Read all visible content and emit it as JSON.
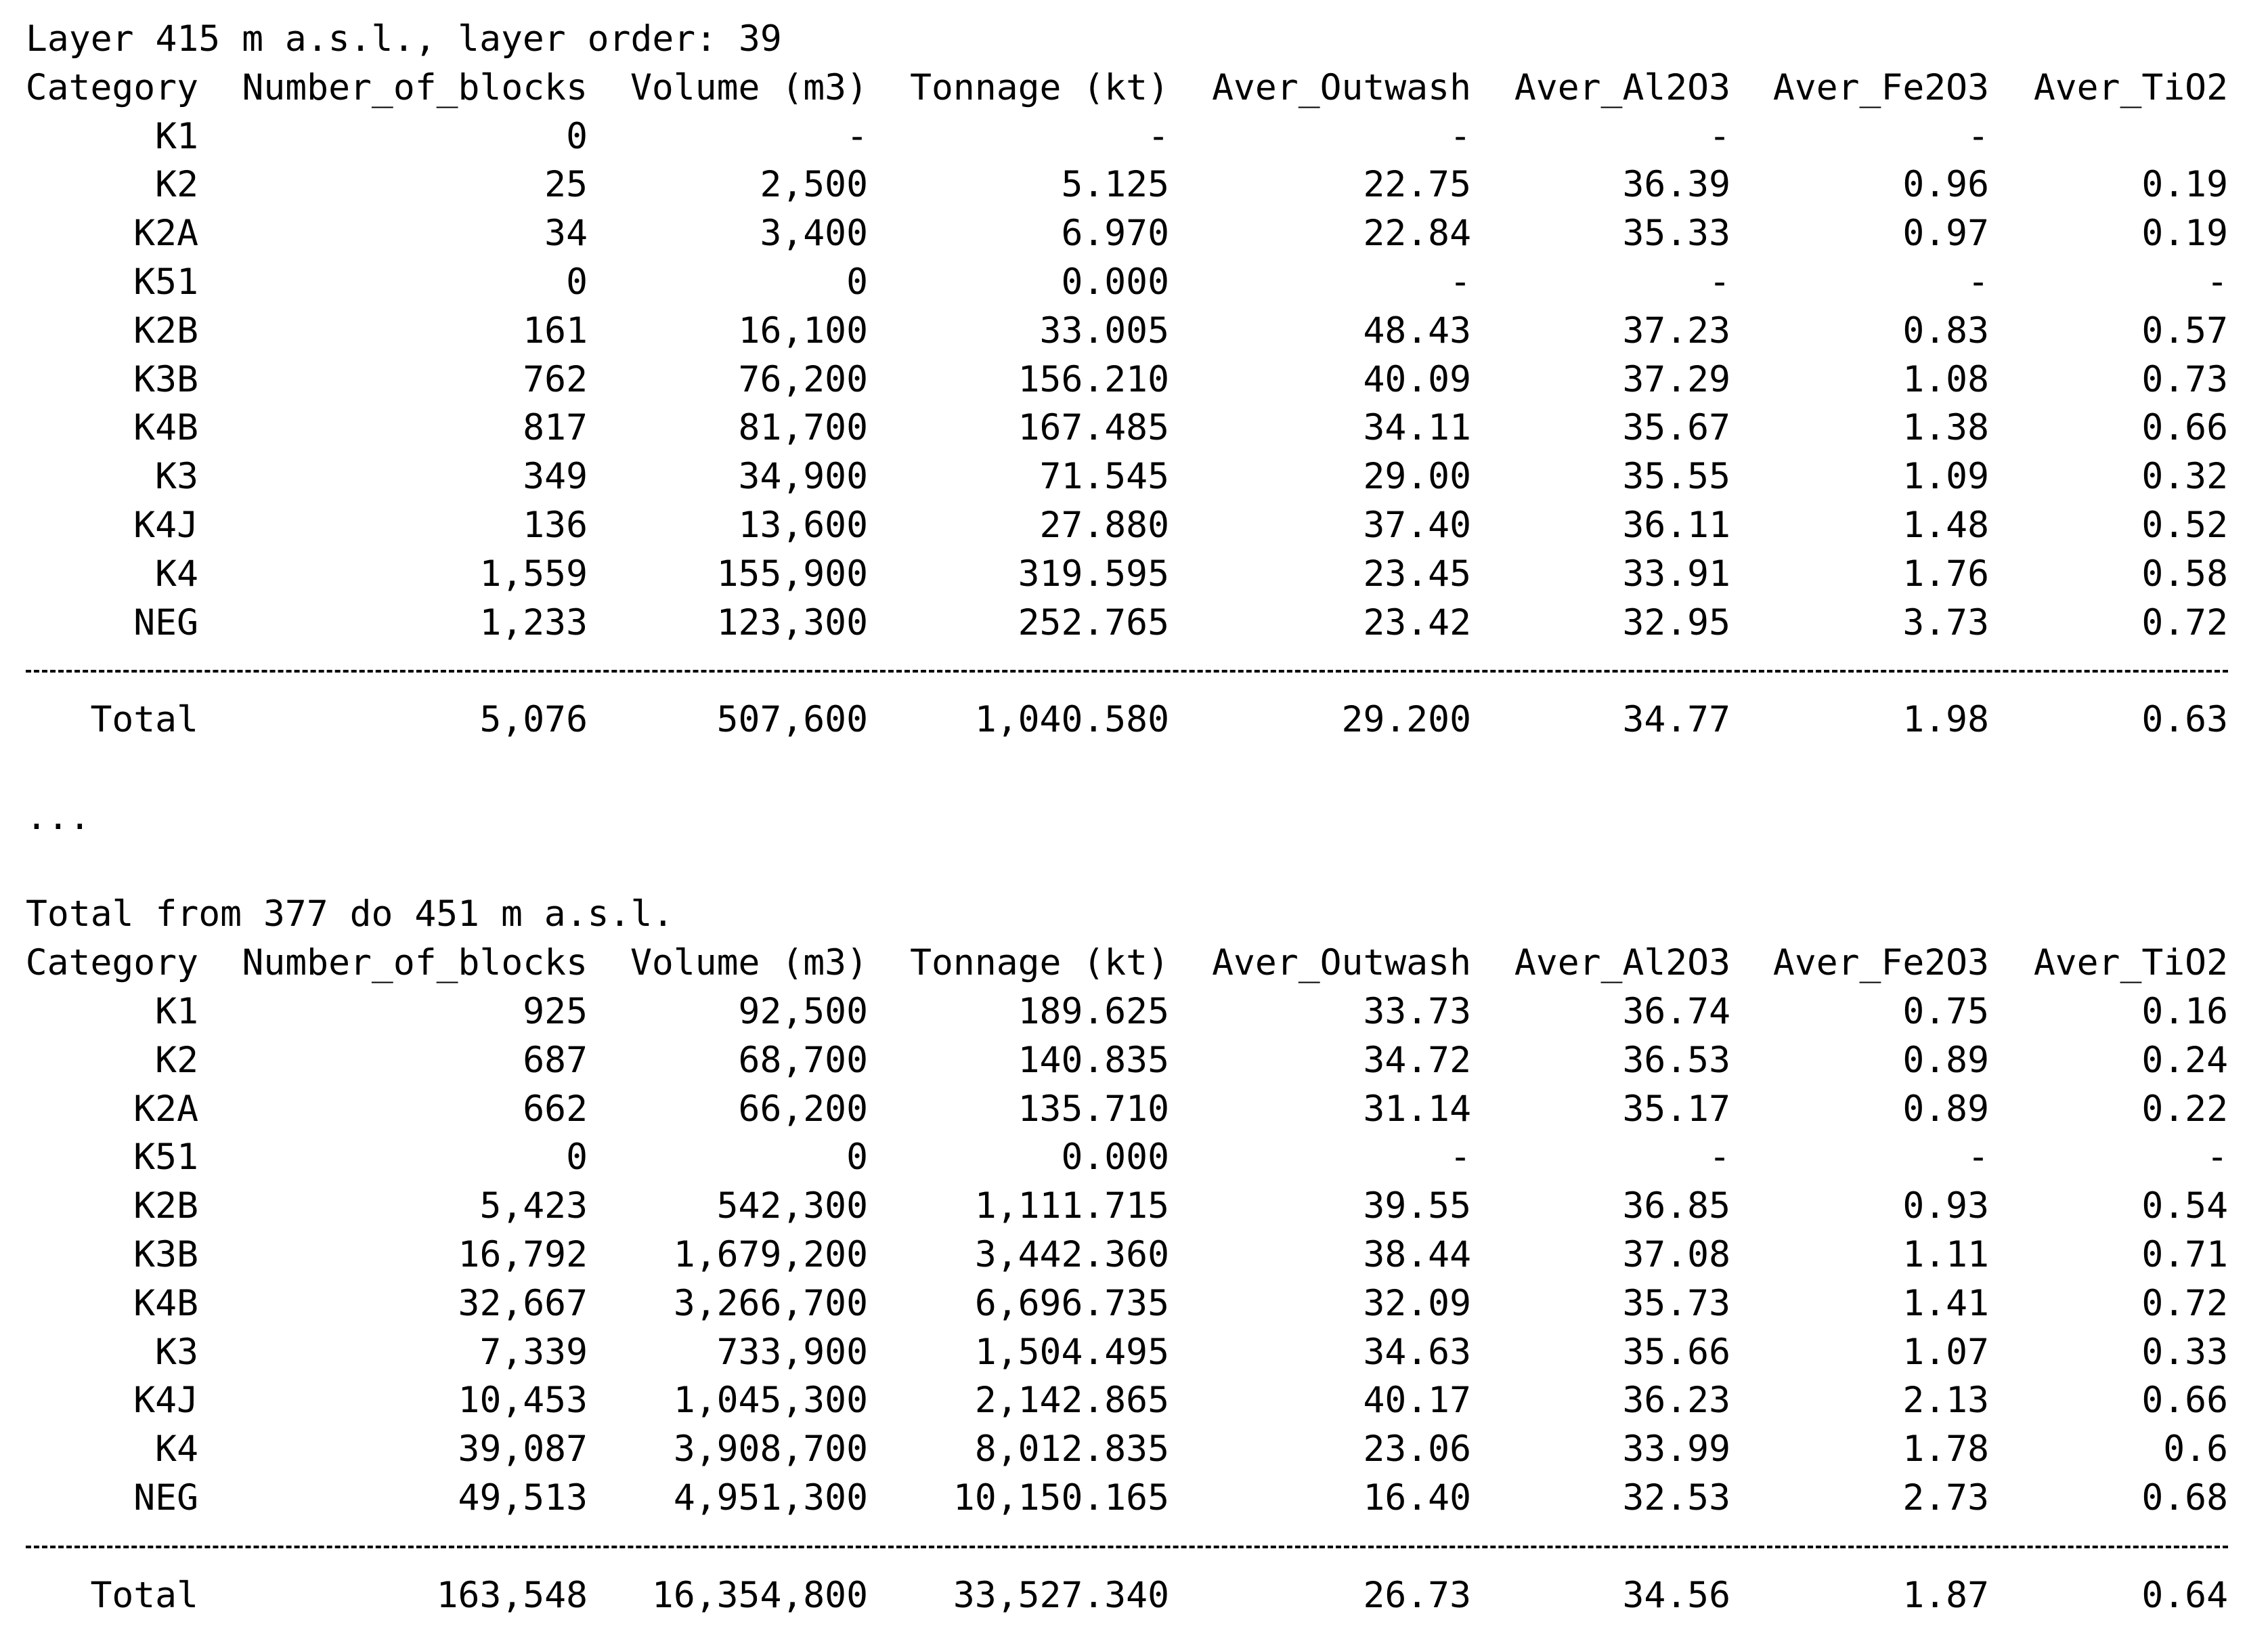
{
  "sections": [
    {
      "title": "Layer 415 m a.s.l., layer order: 39",
      "columns": [
        "Category",
        "Number_of_blocks",
        "Volume (m3)",
        "Tonnage (kt)",
        "Aver_Outwash",
        "Aver_Al2O3",
        "Aver_Fe2O3",
        "Aver_TiO2"
      ],
      "rows": [
        [
          "K1",
          "0",
          "-",
          "-",
          "-",
          "-",
          "-",
          null
        ],
        [
          "K2",
          "25",
          "2,500",
          "5.125",
          "22.75",
          "36.39",
          "0.96",
          "0.19"
        ],
        [
          "K2A",
          "34",
          "3,400",
          "6.970",
          "22.84",
          "35.33",
          "0.97",
          "0.19"
        ],
        [
          "K51",
          "0",
          "0",
          "0.000",
          "-",
          "-",
          "-",
          "-"
        ],
        [
          "K2B",
          "161",
          "16,100",
          "33.005",
          "48.43",
          "37.23",
          "0.83",
          "0.57"
        ],
        [
          "K3B",
          "762",
          "76,200",
          "156.210",
          "40.09",
          "37.29",
          "1.08",
          "0.73"
        ],
        [
          "K4B",
          "817",
          "81,700",
          "167.485",
          "34.11",
          "35.67",
          "1.38",
          "0.66"
        ],
        [
          "K3",
          "349",
          "34,900",
          "71.545",
          "29.00",
          "35.55",
          "1.09",
          "0.32"
        ],
        [
          "K4J",
          "136",
          "13,600",
          "27.880",
          "37.40",
          "36.11",
          "1.48",
          "0.52"
        ],
        [
          "K4",
          "1,559",
          "155,900",
          "319.595",
          "23.45",
          "33.91",
          "1.76",
          "0.58"
        ],
        [
          "NEG",
          "1,233",
          "123,300",
          "252.765",
          "23.42",
          "32.95",
          "3.73",
          "0.72"
        ]
      ],
      "total": [
        "Total",
        "5,076",
        "507,600",
        "1,040.580",
        "29.200",
        "34.77",
        "1.98",
        "0.63"
      ]
    },
    {
      "title": "Total from 377 do 451 m a.s.l.",
      "columns": [
        "Category",
        "Number_of_blocks",
        "Volume (m3)",
        "Tonnage (kt)",
        "Aver_Outwash",
        "Aver_Al2O3",
        "Aver_Fe2O3",
        "Aver_TiO2"
      ],
      "rows": [
        [
          "K1",
          "925",
          "92,500",
          "189.625",
          "33.73",
          "36.74",
          "0.75",
          "0.16"
        ],
        [
          "K2",
          "687",
          "68,700",
          "140.835",
          "34.72",
          "36.53",
          "0.89",
          "0.24"
        ],
        [
          "K2A",
          "662",
          "66,200",
          "135.710",
          "31.14",
          "35.17",
          "0.89",
          "0.22"
        ],
        [
          "K51",
          "0",
          "0",
          "0.000",
          "-",
          "-",
          "-",
          "-"
        ],
        [
          "K2B",
          "5,423",
          "542,300",
          "1,111.715",
          "39.55",
          "36.85",
          "0.93",
          "0.54"
        ],
        [
          "K3B",
          "16,792",
          "1,679,200",
          "3,442.360",
          "38.44",
          "37.08",
          "1.11",
          "0.71"
        ],
        [
          "K4B",
          "32,667",
          "3,266,700",
          "6,696.735",
          "32.09",
          "35.73",
          "1.41",
          "0.72"
        ],
        [
          "K3",
          "7,339",
          "733,900",
          "1,504.495",
          "34.63",
          "35.66",
          "1.07",
          "0.33"
        ],
        [
          "K4J",
          "10,453",
          "1,045,300",
          "2,142.865",
          "40.17",
          "36.23",
          "2.13",
          "0.66"
        ],
        [
          "K4",
          "39,087",
          "3,908,700",
          "8,012.835",
          "23.06",
          "33.99",
          "1.78",
          "0.6"
        ],
        [
          "NEG",
          "49,513",
          "4,951,300",
          "10,150.165",
          "16.40",
          "32.53",
          "2.73",
          "0.68"
        ]
      ],
      "total": [
        "Total",
        "163,548",
        "16,354,800",
        "33,527.340",
        "26.73",
        "34.56",
        "1.87",
        "0.64"
      ]
    }
  ],
  "ellipsis": "..."
}
